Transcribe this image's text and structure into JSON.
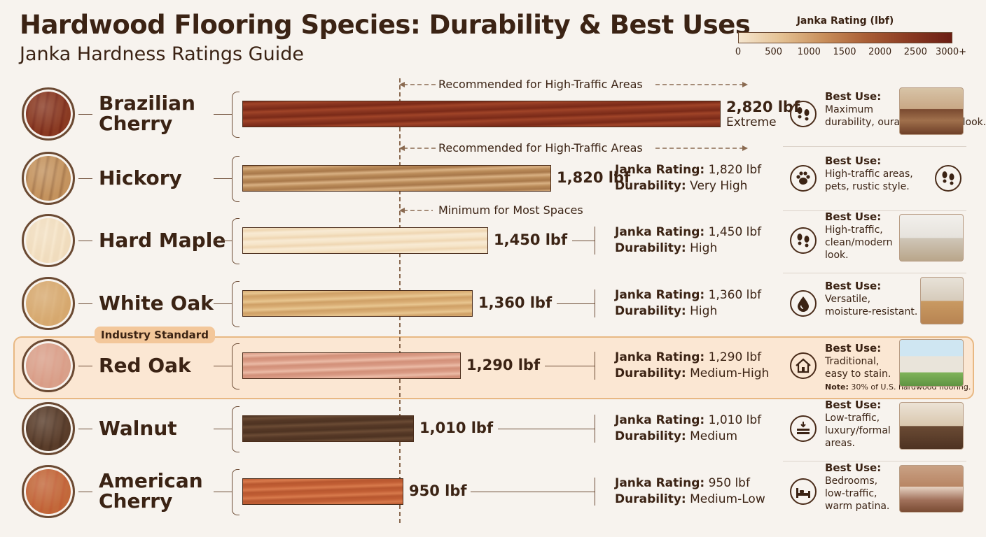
{
  "title": "Hardwood Flooring Species: Durability & Best Uses",
  "subtitle": "Janka Hardness Ratings Guide",
  "legend": {
    "title": "Janka Rating (lbf)",
    "ticks": [
      "0",
      "500",
      "1000",
      "1500",
      "2000",
      "2500",
      "3000+"
    ]
  },
  "guides": {
    "high_traffic": "Recommended for High-Traffic Areas",
    "minimum": "Minimum for Most Spaces"
  },
  "badge": "Industry Standard",
  "labels": {
    "janka": "Janka Rating:",
    "durability": "Durability:",
    "best_use": "Best Use:",
    "note": "Note:"
  },
  "colors": {
    "background": "#f7f3ee",
    "highlight": "#fbe7d3",
    "text": "#3b2314"
  },
  "chart_data": {
    "type": "bar",
    "orientation": "horizontal",
    "unit": "lbf",
    "categories": [
      "Brazilian Cherry",
      "Hickory",
      "Hard Maple",
      "White Oak",
      "Red Oak",
      "Walnut",
      "American Cherry"
    ],
    "values": [
      2820,
      1820,
      1450,
      1360,
      1290,
      1010,
      950
    ],
    "xlim": [
      0,
      3000
    ]
  },
  "species": [
    {
      "name": "Brazilian Cherry",
      "name_lines": [
        "Brazilian",
        "Cherry"
      ],
      "value_label": "2,820 lbf",
      "extra": "Extreme",
      "janka": "",
      "durability": "",
      "use_lines": [
        "Maximum",
        "durability, ourability, exotic look."
      ],
      "icon": "footprints-icon",
      "thumb": "living-room-photo",
      "swatch_color": "#8a3a22",
      "bar_colors": [
        "#7a2a18",
        "#a04428",
        "#8a3520"
      ]
    },
    {
      "name": "Hickory",
      "name_lines": [
        "Hickory"
      ],
      "value_label": "1,820 lbf",
      "extra": "",
      "janka": "1,820 lbf",
      "durability": "Very High",
      "use_lines": [
        "High-traffic areas,",
        "pets, rustic style."
      ],
      "icon": "paw-icon",
      "thumb": "footprints-icon",
      "swatch_color": "#c4935e",
      "bar_colors": [
        "#a8784a",
        "#d9b183",
        "#b98a58"
      ]
    },
    {
      "name": "Hard Maple",
      "name_lines": [
        "Hard Maple"
      ],
      "value_label": "1,450 lbf",
      "extra": "",
      "janka": "1,450 lbf",
      "durability": "High",
      "use_lines": [
        "High-traffic,",
        "clean/modern",
        "look."
      ],
      "icon": "footprints-icon",
      "thumb": "kitchen-photo",
      "swatch_color": "#f0dcbd",
      "bar_colors": [
        "#f6e5c9",
        "#efd6b2",
        "#f8ead3"
      ]
    },
    {
      "name": "White Oak",
      "name_lines": [
        "White Oak"
      ],
      "value_label": "1,360 lbf",
      "extra": "",
      "janka": "1,360 lbf",
      "durability": "High",
      "use_lines": [
        "Versatile,",
        "moisture-resistant."
      ],
      "icon": "water-drop-icon",
      "thumb": "hallway-photo",
      "swatch_color": "#d6a86e",
      "bar_colors": [
        "#d9ad74",
        "#e8c690",
        "#cfa066"
      ]
    },
    {
      "name": "Red Oak",
      "name_lines": [
        "Red Oak"
      ],
      "value_label": "1,290 lbf",
      "extra": "",
      "janka": "1,290 lbf",
      "durability": "Medium-High",
      "use_lines": [
        "Traditional,",
        "easy to stain."
      ],
      "note": "30% of U.S. hardwood flooring.",
      "icon": "house-icon",
      "thumb": "house-photo",
      "swatch_color": "#d9a08a",
      "bar_colors": [
        "#d99a84",
        "#ebbba6",
        "#d29079"
      ]
    },
    {
      "name": "Walnut",
      "name_lines": [
        "Walnut"
      ],
      "value_label": "1,010 lbf",
      "extra": "",
      "janka": "1,010 lbf",
      "durability": "Medium",
      "use_lines": [
        "Low-traffic,",
        "luxury/formal",
        "areas."
      ],
      "icon": "layers-icon",
      "thumb": "dining-room-photo",
      "swatch_color": "#5a3d2a",
      "bar_colors": [
        "#4e3322",
        "#6b4b34",
        "#553826"
      ]
    },
    {
      "name": "American Cherry",
      "name_lines": [
        "American",
        "Cherry"
      ],
      "value_label": "950 lbf",
      "extra": "",
      "janka": "950 lbf",
      "durability": "Medium-Low",
      "use_lines": [
        "Bedrooms,",
        "low-traffic,",
        "warm patina."
      ],
      "icon": "bed-icon",
      "thumb": "bedroom-photo",
      "swatch_color": "#c2683a",
      "bar_colors": [
        "#c15e34",
        "#d87a4c",
        "#b8572f"
      ]
    }
  ]
}
